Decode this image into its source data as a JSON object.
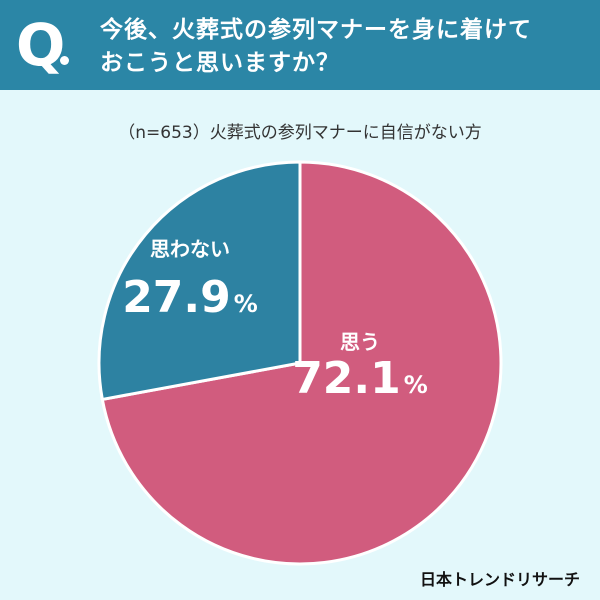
{
  "header": {
    "q_label": "Q",
    "question_lines": [
      "今後、火葬式の参列マナーを身に着けて",
      "おこうと思いますか？"
    ]
  },
  "subtitle": "（n=653）火葬式の参列マナーに自信がない方",
  "footer": {
    "brand": "日本トレンドリサーチ"
  },
  "colors": {
    "header_bg": "#2b86a6",
    "background": "#e3f8fb",
    "slice_yes": "#d15c7e",
    "slice_no": "#2d82a2"
  },
  "chart_data": {
    "type": "pie",
    "title": "",
    "categories": [
      "思う",
      "思わない"
    ],
    "values": [
      72.1,
      27.9
    ],
    "value_labels": [
      "72.1",
      "27.9"
    ],
    "unit": "%"
  }
}
